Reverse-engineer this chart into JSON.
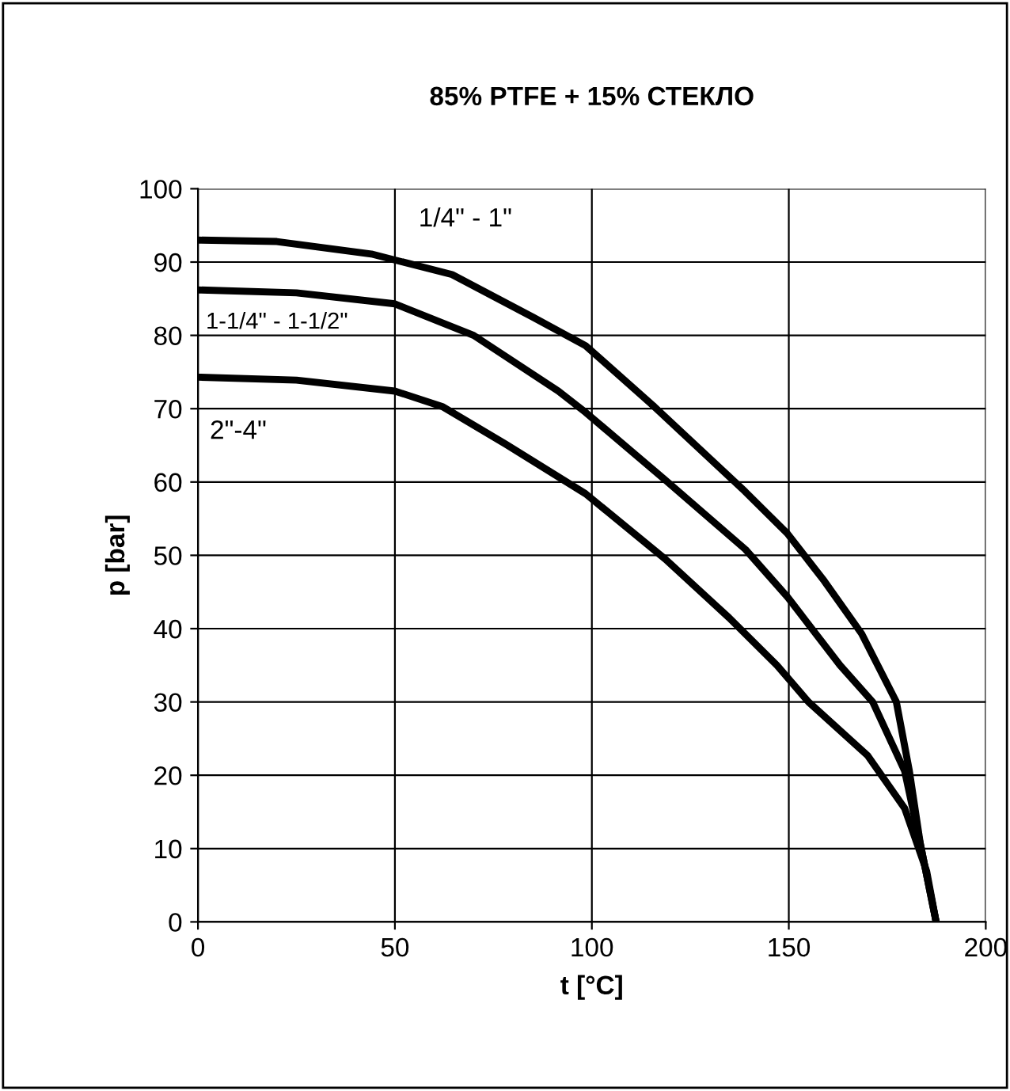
{
  "chart_data": {
    "type": "line",
    "title": "85% PTFE + 15% СТЕКЛО",
    "xlabel": "t [°C]",
    "ylabel": "p [bar]",
    "xlim": [
      0,
      200
    ],
    "xticks": [
      0,
      50,
      100,
      150,
      200
    ],
    "ylim": [
      0,
      100
    ],
    "yticks": [
      0,
      10,
      20,
      30,
      40,
      50,
      60,
      70,
      80,
      90,
      100
    ],
    "grid": true,
    "legend": false,
    "marker": "none",
    "line_style": "solid",
    "series": [
      {
        "name": "1/4\" - 1\"",
        "color": "#000000",
        "x": [
          0,
          20,
          44,
          64.5,
          85,
          98.4,
          115.8,
          138.9,
          149.6,
          159,
          168.5,
          177.3,
          180.6,
          183.4,
          187.4
        ],
        "values": [
          93,
          92.8,
          91.1,
          88.3,
          82.5,
          78.6,
          70.3,
          58.7,
          53,
          46.5,
          39.3,
          30,
          20.6,
          10.6,
          0
        ]
      },
      {
        "name": "1-1/4\" - 1-1/2\"",
        "color": "#000000",
        "x": [
          0,
          25,
          50,
          70,
          91.5,
          98.4,
          118.6,
          139,
          149.7,
          163,
          171.3,
          179.4,
          183.4,
          187.4
        ],
        "values": [
          86.2,
          85.8,
          84.3,
          80,
          72.4,
          69.5,
          60.3,
          50.8,
          44.3,
          35,
          30,
          20.6,
          10.6,
          0
        ]
      },
      {
        "name": "2\"-4\"",
        "color": "#000000",
        "x": [
          0,
          25,
          50,
          62,
          78,
          98.4,
          118.6,
          134.8,
          147,
          155,
          170,
          179.4,
          185,
          187.4
        ],
        "values": [
          74.3,
          73.9,
          72.4,
          70.3,
          65.2,
          58.4,
          49.5,
          41.5,
          35,
          30,
          22.7,
          15.5,
          6.9,
          0
        ]
      }
    ]
  }
}
